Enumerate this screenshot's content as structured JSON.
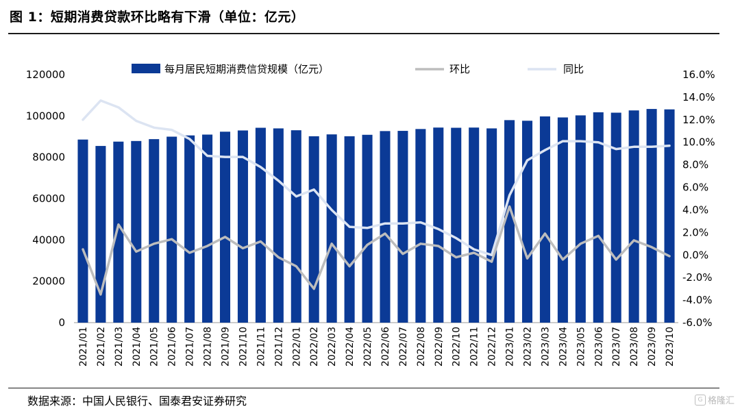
{
  "header": {
    "title": "图 1：短期消费贷款环比略有下滑（单位：亿元）"
  },
  "footer": {
    "source": "数据来源：中国人民银行、国泰君安证券研究",
    "watermark": "格隆汇"
  },
  "colors": {
    "bar": "#0b3a96",
    "mom": "#bdbdbd",
    "yoy": "#dce4f2"
  },
  "chart_data": {
    "type": "bar",
    "categories": [
      "2021/01",
      "2021/02",
      "2021/03",
      "2021/04",
      "2021/05",
      "2021/06",
      "2021/07",
      "2021/08",
      "2021/09",
      "2021/10",
      "2021/11",
      "2021/12",
      "2022/01",
      "2022/02",
      "2022/03",
      "2022/04",
      "2022/05",
      "2022/06",
      "2022/07",
      "2022/08",
      "2022/09",
      "2022/10",
      "2022/11",
      "2022/12",
      "2023/01",
      "2023/02",
      "2023/03",
      "2023/04",
      "2023/05",
      "2023/06",
      "2023/07",
      "2023/08",
      "2023/09",
      "2023/10"
    ],
    "left_axis": {
      "ylim": [
        0,
        120000
      ],
      "ticks": [
        0,
        20000,
        40000,
        60000,
        80000,
        100000,
        120000
      ]
    },
    "right_axis": {
      "ylim": [
        -6,
        16
      ],
      "ticks": [
        "-6.0%",
        "-4.0%",
        "-2.0%",
        "0.0%",
        "2.0%",
        "4.0%",
        "6.0%",
        "8.0%",
        "10.0%",
        "12.0%",
        "14.0%",
        "16.0%"
      ]
    },
    "series": [
      {
        "name": "每月居民短期消费信贷规模（亿元）",
        "type": "bar",
        "axis": "left",
        "values": [
          88600,
          85500,
          87600,
          87900,
          88800,
          90000,
          90600,
          91000,
          92400,
          93000,
          94300,
          94000,
          93100,
          90200,
          91100,
          90200,
          90900,
          92700,
          92800,
          93700,
          94400,
          94300,
          94400,
          94000,
          98000,
          97700,
          99800,
          99300,
          100300,
          101800,
          101600,
          102700,
          103400,
          103200
        ]
      },
      {
        "name": "环比",
        "type": "line",
        "axis": "right",
        "values": [
          0.5,
          -3.5,
          2.7,
          0.3,
          1.0,
          1.4,
          0.2,
          0.8,
          1.6,
          0.6,
          1.2,
          -0.2,
          -1.0,
          -3.0,
          1.0,
          -1.0,
          0.9,
          1.9,
          0.1,
          1.0,
          0.8,
          -0.2,
          0.2,
          -0.6,
          4.3,
          -0.3,
          1.9,
          -0.4,
          1.0,
          1.7,
          -0.4,
          1.3,
          0.7,
          -0.1
        ]
      },
      {
        "name": "同比",
        "type": "line",
        "axis": "right",
        "values": [
          12.0,
          13.7,
          13.1,
          11.9,
          11.3,
          11.1,
          10.3,
          8.8,
          8.7,
          8.7,
          7.8,
          6.6,
          5.2,
          5.8,
          4.0,
          2.5,
          2.4,
          2.8,
          2.8,
          2.9,
          2.3,
          1.5,
          0.5,
          0.0,
          5.3,
          8.4,
          9.3,
          10.1,
          10.1,
          10.0,
          9.4,
          9.6,
          9.6,
          9.7
        ]
      }
    ]
  }
}
